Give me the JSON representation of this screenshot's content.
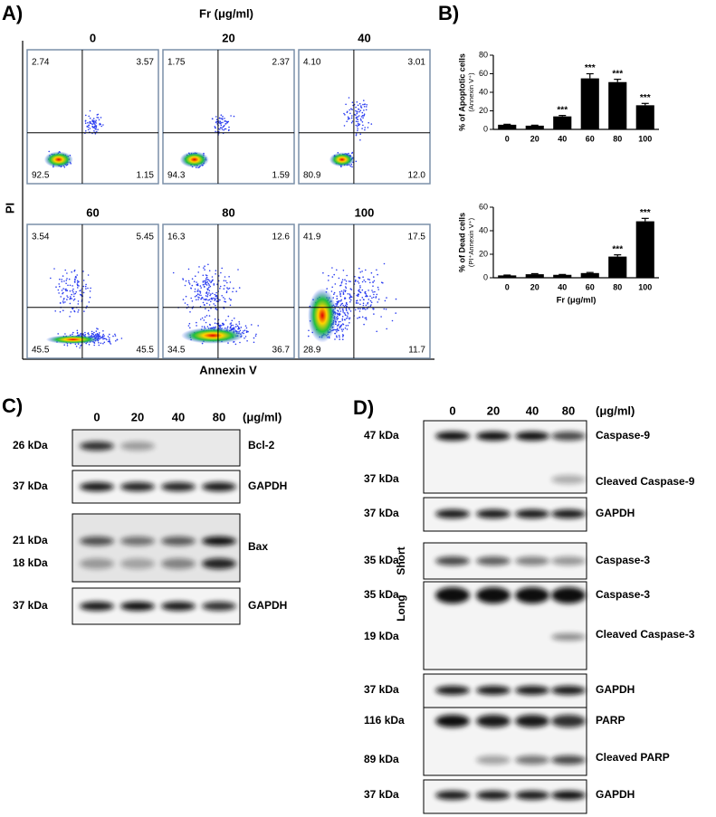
{
  "panel_a": {
    "label": "A)",
    "header": "Fr (μg/ml)",
    "y_label": "PI",
    "x_label": "Annexin V",
    "plots": [
      {
        "title": "0",
        "quadrants": [
          "2.74",
          "3.57",
          "92.5",
          "1.15"
        ]
      },
      {
        "title": "20",
        "quadrants": [
          "1.75",
          "2.37",
          "94.3",
          "1.59"
        ]
      },
      {
        "title": "40",
        "quadrants": [
          "4.10",
          "3.01",
          "80.9",
          "12.0"
        ]
      },
      {
        "title": "60",
        "quadrants": [
          "3.54",
          "5.45",
          "45.5",
          "45.5"
        ]
      },
      {
        "title": "80",
        "quadrants": [
          "16.3",
          "12.6",
          "34.5",
          "36.7"
        ]
      },
      {
        "title": "100",
        "quadrants": [
          "41.9",
          "17.5",
          "28.9",
          "11.7"
        ]
      }
    ]
  },
  "panel_b": {
    "label": "B)"
  },
  "chart_data": [
    {
      "type": "bar",
      "y_label": [
        "% of Apoptotic cells",
        "(Annexin V⁺)"
      ],
      "categories": [
        "0",
        "20",
        "40",
        "60",
        "80",
        "100"
      ],
      "values": [
        5,
        4,
        14,
        55,
        51,
        26
      ],
      "errors": [
        0.5,
        0.5,
        1,
        5,
        3,
        2
      ],
      "significance": [
        null,
        null,
        "***",
        "***",
        "***",
        "***"
      ],
      "color": "#000000",
      "ylim": [
        0,
        80
      ],
      "yticks": [
        0,
        20,
        40,
        60,
        80
      ]
    },
    {
      "type": "bar",
      "y_label": [
        "% of Dead cells",
        "(PI⁺Annexin V⁺)"
      ],
      "x_label": "Fr (μg/ml)",
      "categories": [
        "0",
        "20",
        "40",
        "60",
        "80",
        "100"
      ],
      "values": [
        2,
        3,
        2.5,
        4,
        18,
        48
      ],
      "errors": [
        0.3,
        0.5,
        0.3,
        0.5,
        1.5,
        2.5
      ],
      "significance": [
        null,
        null,
        null,
        null,
        "***",
        "***"
      ],
      "color": "#000000",
      "ylim": [
        0,
        60
      ],
      "yticks": [
        0,
        20,
        40,
        60
      ]
    }
  ],
  "panel_c": {
    "label": "C)",
    "lanes": [
      "0",
      "20",
      "40",
      "80"
    ],
    "unit": "(μg/ml)",
    "blots": [
      {
        "rows": [
          {
            "marker": "26 kDa",
            "protein": "Bcl-2"
          }
        ]
      },
      {
        "rows": [
          {
            "marker": "37 kDa",
            "protein": "GAPDH"
          }
        ]
      },
      {
        "rows": [
          {
            "marker": "21 kDa",
            "protein": "Bax"
          },
          {
            "marker": "18 kDa"
          }
        ]
      },
      {
        "rows": [
          {
            "marker": "37 kDa",
            "protein": "GAPDH"
          }
        ]
      }
    ]
  },
  "panel_d": {
    "label": "D)",
    "lanes": [
      "0",
      "20",
      "40",
      "80"
    ],
    "unit": "(μg/ml)",
    "blots": [
      {
        "rows": [
          {
            "marker": "47 kDa",
            "protein": "Caspase-9"
          },
          {
            "marker": "37 kDa",
            "protein": "Cleaved Caspase-9"
          }
        ]
      },
      {
        "rows": [
          {
            "marker": "37 kDa",
            "protein": "GAPDH"
          }
        ]
      },
      {
        "exposure": "Short",
        "rows": [
          {
            "marker": "35 kDa",
            "protein": "Caspase-3"
          }
        ]
      },
      {
        "exposure": "Long",
        "rows": [
          {
            "marker": "35 kDa",
            "protein": "Caspase-3"
          },
          {
            "marker": "19 kDa",
            "protein": "Cleaved Caspase-3"
          }
        ]
      },
      {
        "rows": [
          {
            "marker": "37 kDa",
            "protein": "GAPDH"
          }
        ]
      },
      {
        "rows": [
          {
            "marker": "116 kDa",
            "protein": "PARP"
          },
          {
            "marker": "89 kDa",
            "protein": "Cleaved PARP"
          }
        ]
      },
      {
        "rows": [
          {
            "marker": "37 kDa",
            "protein": "GAPDH"
          }
        ]
      }
    ]
  }
}
